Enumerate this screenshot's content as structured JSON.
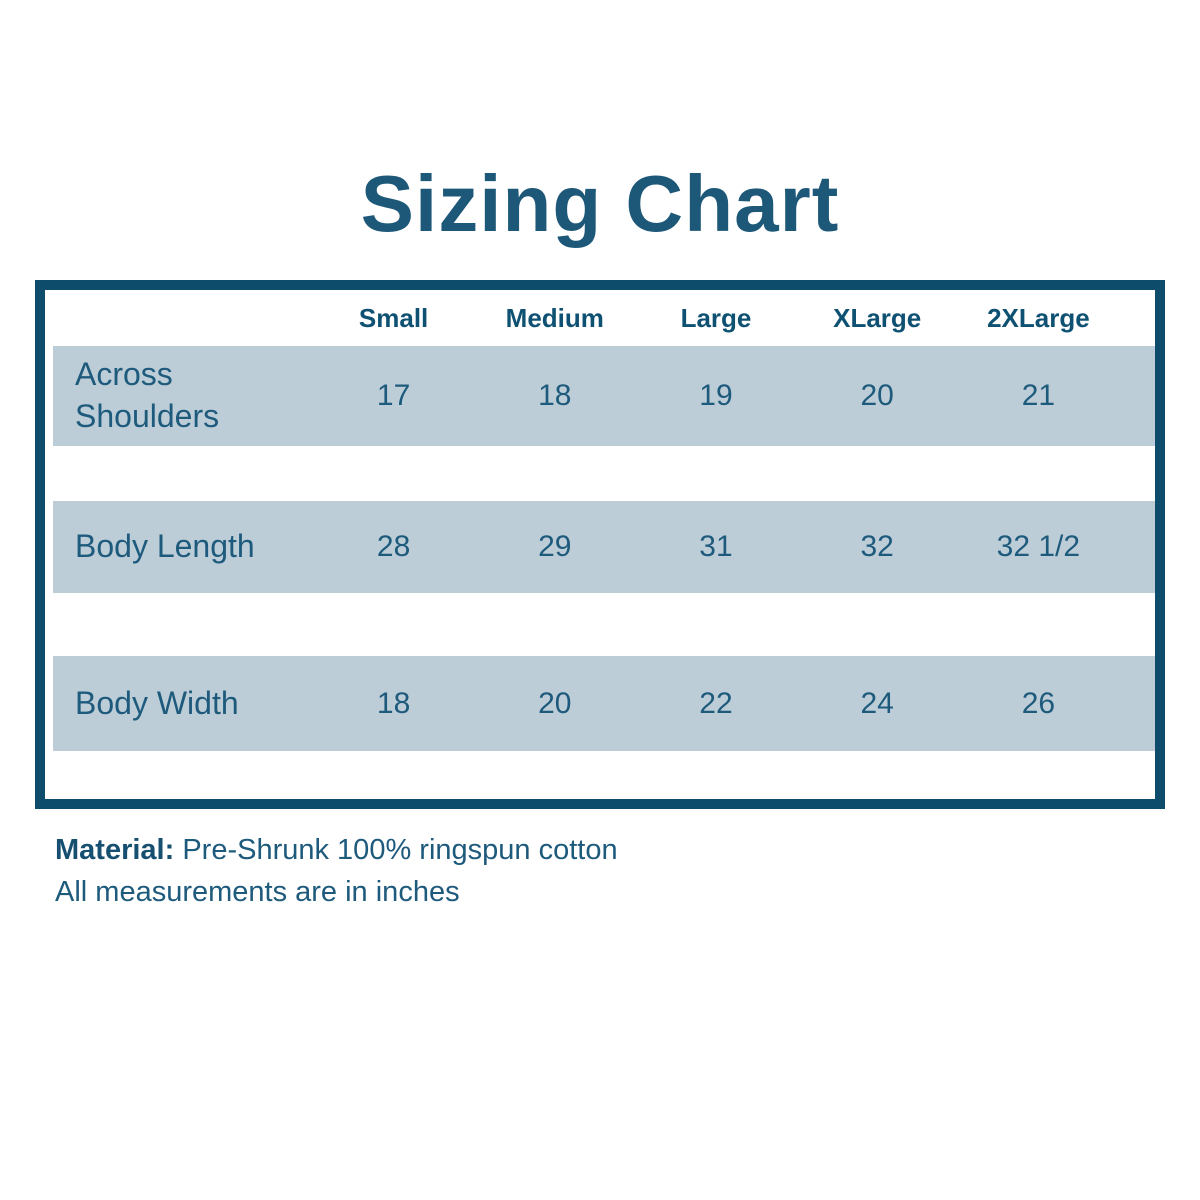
{
  "title": "Sizing Chart",
  "colors": {
    "accent_dark_teal": "#0e4c6b",
    "text_teal": "#1e5a7c",
    "row_background": "#bccdd8",
    "page_background": "#ffffff"
  },
  "chart_data": {
    "type": "table",
    "title": "Sizing Chart",
    "columns": [
      "",
      "Small",
      "Medium",
      "Large",
      "XLarge",
      "2XLarge"
    ],
    "rows": [
      {
        "label": "Across Shoulders",
        "values": [
          "17",
          "18",
          "19",
          "20",
          "21"
        ]
      },
      {
        "label": "Body Length",
        "values": [
          "28",
          "29",
          "31",
          "32",
          "32 1/2"
        ]
      },
      {
        "label": "Body Width",
        "values": [
          "18",
          "20",
          "22",
          "24",
          "26"
        ]
      }
    ],
    "units": "inches"
  },
  "footer": {
    "material_label": "Material:",
    "material_value": "Pre-Shrunk 100% ringspun cotton",
    "note": "All measurements are in inches"
  }
}
